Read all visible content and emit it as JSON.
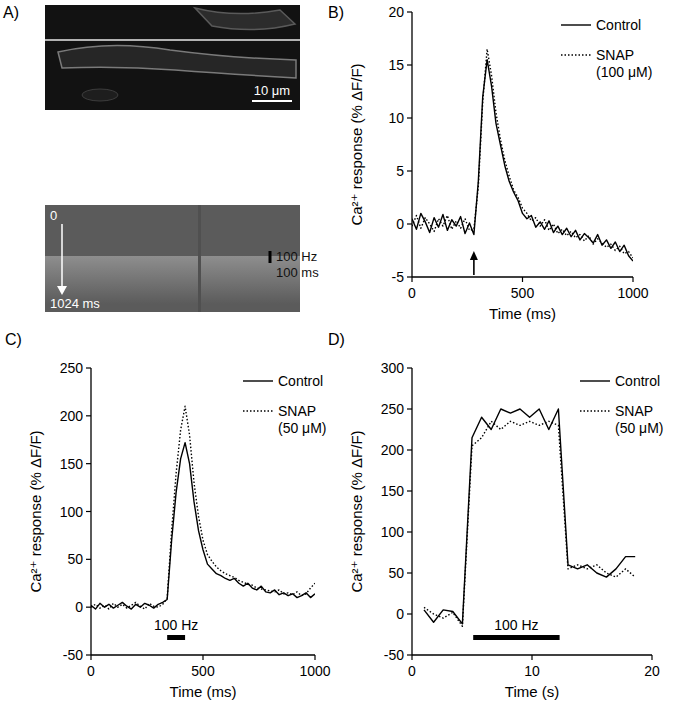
{
  "panel_a": {
    "title": "A)",
    "scale_bar": "10 μm",
    "time_start": "0",
    "time_end": "1024 ms",
    "stimulus_label": "100 Hz",
    "stimulus_duration": "100 ms"
  },
  "chart_data": [
    {
      "type": "line",
      "title": "B)",
      "x_label": "Time (ms)",
      "y_label": "Ca²⁺ response (% ΔF/F)",
      "x": [
        0,
        20,
        40,
        60,
        80,
        100,
        120,
        140,
        160,
        180,
        200,
        220,
        240,
        260,
        280,
        300,
        320,
        340,
        360,
        380,
        400,
        420,
        440,
        460,
        480,
        500,
        520,
        540,
        560,
        580,
        600,
        620,
        640,
        660,
        680,
        700,
        720,
        740,
        760,
        780,
        800,
        820,
        840,
        860,
        880,
        900,
        920,
        940,
        960,
        980,
        1000
      ],
      "series": [
        {
          "name": "Control",
          "color": "#000000",
          "line_style": "solid",
          "values": [
            0.5,
            -0.5,
            1.0,
            0.2,
            -0.8,
            0.6,
            -0.3,
            0.9,
            -0.6,
            0.4,
            -0.2,
            0.7,
            -0.9,
            0.1,
            -1.0,
            4.0,
            12.0,
            15.5,
            13.0,
            9.5,
            7.5,
            5.5,
            4.0,
            3.0,
            2.2,
            1.0,
            0.5,
            0.8,
            -0.3,
            0.2,
            -0.5,
            0.3,
            -0.8,
            -0.2,
            -1.0,
            -0.4,
            -1.2,
            -0.6,
            -1.5,
            -0.9,
            -1.3,
            -1.8,
            -1.0,
            -2.0,
            -1.5,
            -2.3,
            -1.7,
            -2.6,
            -2.0,
            -3.0,
            -3.5
          ]
        },
        {
          "name": "SNAP (100 μM)",
          "color": "#000000",
          "line_style": "dotted",
          "values": [
            -0.2,
            0.8,
            -0.4,
            0.6,
            0,
            -0.7,
            0.5,
            -0.2,
            0.8,
            -0.5,
            0.3,
            -0.4,
            0.5,
            -0.6,
            -0.5,
            3.5,
            11.5,
            16.5,
            14,
            10.5,
            8,
            6,
            4.5,
            3.2,
            2.5,
            1.5,
            1,
            0.3,
            0.6,
            -0.2,
            0.4,
            -0.6,
            0,
            -0.9,
            -0.5,
            -1.1,
            -0.7,
            -1.3,
            -1,
            -1.6,
            -1.1,
            -1.9,
            -1.4,
            -1.8,
            -2.2,
            -1.9,
            -2.5,
            -2.1,
            -2.8,
            -2.6,
            -3.2
          ]
        }
      ],
      "xlim": [
        0,
        1000
      ],
      "xticks": [
        0,
        500,
        1000
      ],
      "ylim": [
        -5,
        20
      ],
      "yticks": [
        -5,
        0,
        5,
        10,
        15,
        20
      ],
      "grid": false,
      "legend": "upper right",
      "stimulus": 280
    },
    {
      "type": "line",
      "title": "C)",
      "x_label": "Time (ms)",
      "y_label": "Ca²⁺ response (% ΔF/F)",
      "x": [
        0,
        20,
        40,
        60,
        80,
        100,
        120,
        140,
        160,
        180,
        200,
        220,
        240,
        260,
        280,
        300,
        320,
        340,
        360,
        380,
        400,
        420,
        440,
        460,
        480,
        500,
        520,
        540,
        560,
        580,
        600,
        620,
        640,
        660,
        680,
        700,
        720,
        740,
        760,
        780,
        800,
        820,
        840,
        860,
        880,
        900,
        920,
        940,
        960,
        980,
        1000
      ],
      "series": [
        {
          "name": "Control",
          "color": "#000000",
          "line_style": "solid",
          "values": [
            2,
            -2,
            4,
            0,
            3,
            -1,
            2,
            5,
            1,
            -2,
            3,
            0,
            4,
            2,
            -1,
            3,
            5,
            8,
            70,
            120,
            155,
            172,
            150,
            110,
            80,
            60,
            45,
            40,
            35,
            33,
            30,
            28,
            30,
            25,
            22,
            25,
            20,
            18,
            22,
            16,
            15,
            18,
            13,
            15,
            12,
            14,
            10,
            12,
            15,
            10,
            14
          ]
        },
        {
          "name": "SNAP (50 μM)",
          "color": "#000000",
          "line_style": "dotted",
          "values": [
            0,
            3,
            -1,
            2,
            -2,
            4,
            0,
            3,
            -1,
            2,
            5,
            1,
            -2,
            4,
            1,
            0,
            3,
            9,
            80,
            140,
            185,
            210,
            180,
            130,
            95,
            70,
            55,
            48,
            42,
            38,
            35,
            33,
            31,
            28,
            26,
            24,
            23,
            20,
            19,
            18,
            17,
            16,
            18,
            14,
            15,
            13,
            16,
            12,
            14,
            20,
            25
          ]
        }
      ],
      "xlim": [
        0,
        1000
      ],
      "xticks": [
        0,
        500,
        1000
      ],
      "ylim": [
        -50,
        250
      ],
      "yticks": [
        -50,
        0,
        50,
        100,
        150,
        200,
        250
      ],
      "grid": false,
      "legend": "upper right",
      "stimulus": [
        340,
        420
      ],
      "stimulus_label": "100 Hz"
    },
    {
      "type": "line",
      "title": "D)",
      "x_label": "Time (s)",
      "y_label": "Ca²⁺ response (% ΔF/F)",
      "x": [
        1.0,
        1.8,
        2.6,
        3.4,
        4.2,
        5.0,
        5.8,
        6.6,
        7.4,
        8.2,
        9.0,
        9.8,
        10.6,
        11.4,
        12.2,
        13.0,
        13.8,
        14.6,
        15.4,
        16.2,
        17.0,
        17.8,
        18.6
      ],
      "series": [
        {
          "name": "Control",
          "color": "#000000",
          "line_style": "solid",
          "values": [
            5,
            -10,
            5,
            3,
            -12,
            215,
            240,
            225,
            250,
            245,
            250,
            240,
            250,
            225,
            250,
            60,
            55,
            60,
            50,
            45,
            55,
            70,
            70
          ]
        },
        {
          "name": "SNAP (50 μM)",
          "color": "#000000",
          "line_style": "dotted",
          "values": [
            8,
            0,
            -5,
            2,
            -15,
            205,
            215,
            235,
            225,
            235,
            230,
            235,
            230,
            235,
            230,
            55,
            60,
            55,
            60,
            50,
            45,
            55,
            45
          ]
        }
      ],
      "xlim": [
        0,
        20
      ],
      "xticks": [
        0,
        10,
        20
      ],
      "ylim": [
        -50,
        300
      ],
      "yticks": [
        -50,
        0,
        50,
        100,
        150,
        200,
        250,
        300
      ],
      "grid": false,
      "legend": "upper right",
      "stimulus": [
        5.1,
        12.3
      ],
      "stimulus_label": "100 Hz"
    }
  ]
}
